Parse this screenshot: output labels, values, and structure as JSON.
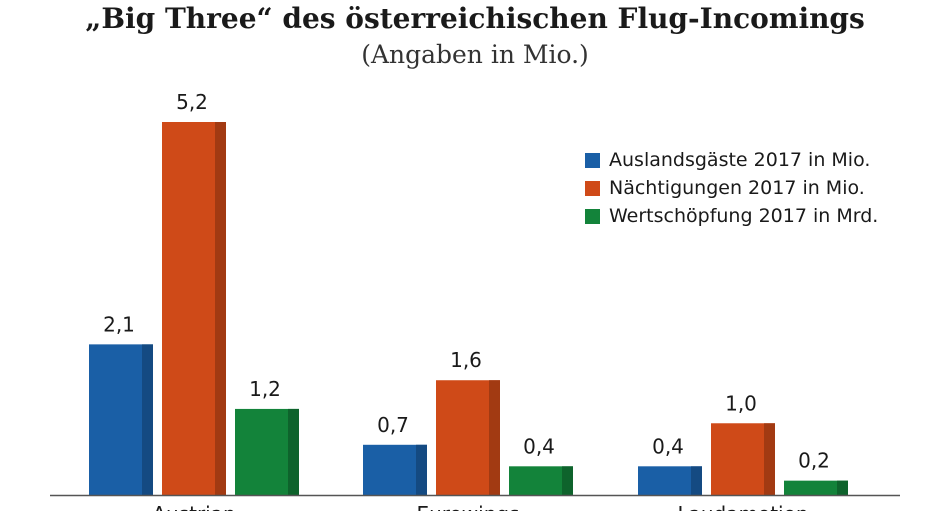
{
  "chart_data": {
    "type": "bar",
    "title": "„Big Three“ des österreichischen Flug-Incomings",
    "subtitle": "(Angaben in Mio.)",
    "categories": [
      "Austrian",
      "Eurowings",
      "Laudamotion"
    ],
    "series": [
      {
        "name": "Auslandsgäste 2017 in Mio.",
        "values": [
          2.1,
          0.7,
          0.4
        ],
        "labels": [
          "2,1",
          "0,7",
          "0,4"
        ],
        "color": "#1a5fa6",
        "side_color": "#144a82"
      },
      {
        "name": "Nächtigungen 2017 in Mio.",
        "values": [
          5.2,
          1.6,
          1.0
        ],
        "labels": [
          "5,2",
          "1,6",
          "1,0"
        ],
        "color": "#cf4a18",
        "side_color": "#a23a12"
      },
      {
        "name": "Wertschöpfung 2017 in Mrd.",
        "values": [
          1.2,
          0.4,
          0.2
        ],
        "labels": [
          "1,2",
          "0,4",
          "0,2"
        ],
        "color": "#13833a",
        "side_color": "#0e632c"
      }
    ],
    "ylim": [
      0,
      5.2
    ],
    "grid": false,
    "legend_position": "top-right"
  }
}
